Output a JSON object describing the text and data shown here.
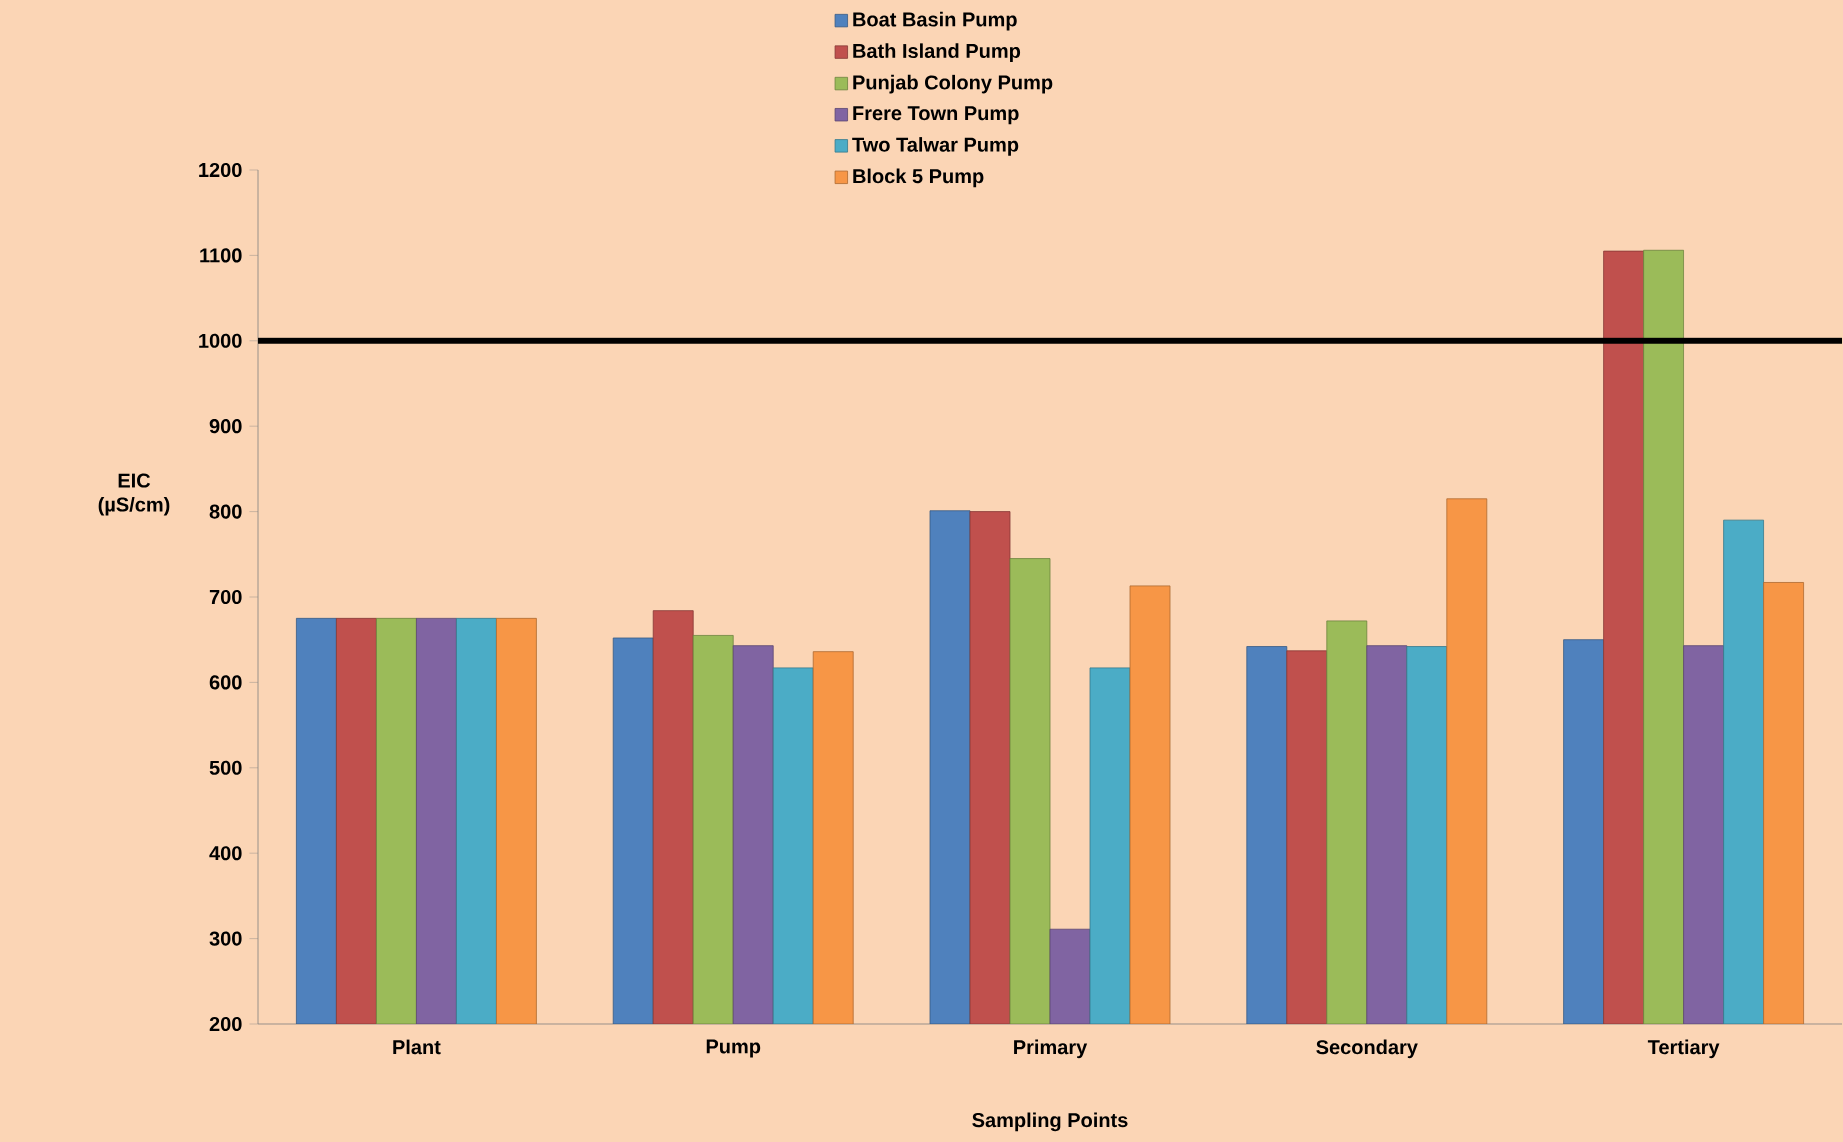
{
  "chart_data": {
    "type": "bar",
    "xlabel": "Sampling Points",
    "ylabel": "EIC (µS/cm)",
    "categories": [
      "Plant",
      "Pump",
      "Primary",
      "Secondary",
      "Tertiary"
    ],
    "series": [
      {
        "name": "Boat Basin Pump",
        "color": "#4f81bd",
        "values": [
          675,
          652,
          801,
          642,
          650
        ]
      },
      {
        "name": "Bath Island Pump",
        "color": "#c0504d",
        "values": [
          675,
          684,
          800,
          637,
          1105
        ]
      },
      {
        "name": "Punjab Colony Pump",
        "color": "#9bbb59",
        "values": [
          675,
          655,
          745,
          672,
          1106
        ]
      },
      {
        "name": "Frere Town Pump",
        "color": "#8064a2",
        "values": [
          675,
          643,
          311,
          643,
          643
        ]
      },
      {
        "name": "Two Talwar Pump",
        "color": "#4bacc6",
        "values": [
          675,
          617,
          617,
          642,
          790
        ]
      },
      {
        "name": "Block 5 Pump",
        "color": "#f79646",
        "values": [
          675,
          636,
          713,
          815,
          717
        ]
      }
    ],
    "ylim": [
      200,
      1200
    ],
    "yticks": [
      200,
      300,
      400,
      500,
      600,
      700,
      800,
      900,
      1000,
      1100,
      1200
    ],
    "ref_lines": [
      {
        "axis": "y",
        "value": 1000,
        "color": "#000000"
      }
    ],
    "legend": "top",
    "grid": false
  }
}
